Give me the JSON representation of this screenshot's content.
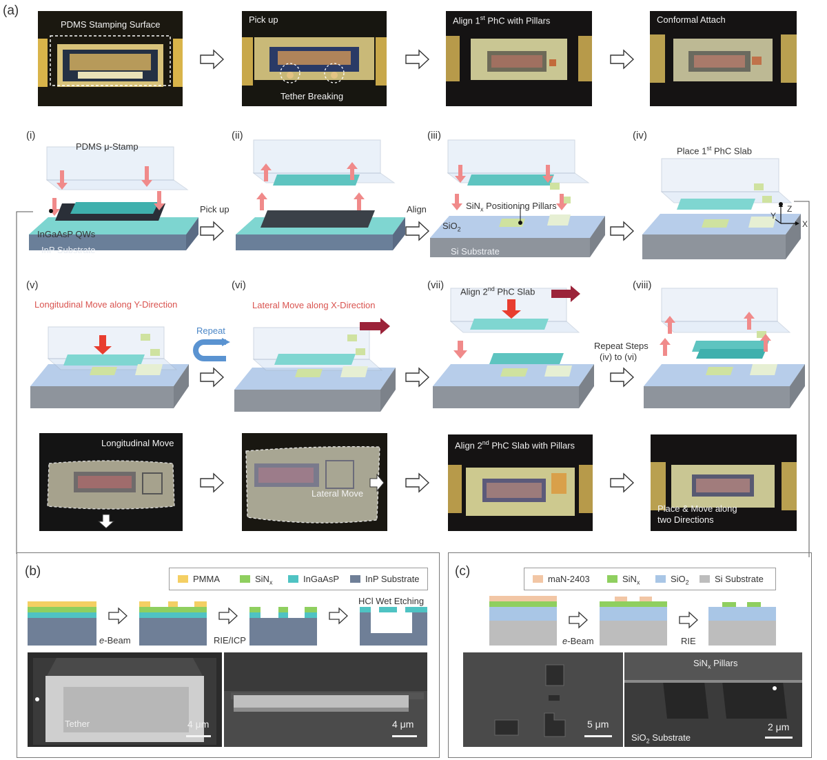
{
  "labels": {
    "a": "(a)",
    "b": "(b)",
    "c": "(c)"
  },
  "steps": [
    "(i)",
    "(ii)",
    "(iii)",
    "(iv)",
    "(v)",
    "(vi)",
    "(vii)",
    "(viii)"
  ],
  "top_photos": {
    "p1": "PDMS Stamping Surface",
    "p2_top": "Pick up",
    "p2_bottom": "Tether Breaking",
    "p3": "Align 1st PhC with Pillars",
    "p4": "Conformal Attach"
  },
  "row1": {
    "stamp": "PDMS μ-Stamp",
    "qw": "InGaAsP QWs",
    "inp": "InP Substrate",
    "pickup": "Pick up",
    "align": "Align",
    "pillars": "SiNx Positioning Pillars",
    "sio2": "SiO2",
    "si": "Si Substrate",
    "place": "Place 1st PhC Slab",
    "ax_z": "Z",
    "ax_y": "Y",
    "ax_x": "X"
  },
  "row2": {
    "long_move": "Longitudinal Move along Y-Direction",
    "repeat": "Repeat",
    "lat_move": "Lateral Move along X-Direction",
    "align2": "Align 2nd PhC Slab",
    "repeat_steps_1": "Repeat Steps",
    "repeat_steps_2": "(iv) to (vi)"
  },
  "bottom_photos": {
    "b1": "Longitudinal Move",
    "b2": "Lateral Move",
    "b3": "Align 2nd PhC Slab with Pillars",
    "b4_1": "Place & Move along",
    "b4_2": "two Directions"
  },
  "panel_b": {
    "legend": [
      "PMMA",
      "SiNx",
      "InGaAsP",
      "InP Substrate"
    ],
    "legend_colors": [
      "#f4cf63",
      "#8fcf5f",
      "#4fc3c3",
      "#6f7f97"
    ],
    "step_ebeam": "e-Beam",
    "step_rie": "RIE/ICP",
    "step_hcl": "HCl Wet Etching",
    "tether": "Tether",
    "scale1": "4 μm",
    "scale2": "4 μm"
  },
  "panel_c": {
    "legend": [
      "maN-2403",
      "SiNx",
      "SiO2",
      "Si Substrate"
    ],
    "legend_colors": [
      "#f2c6a5",
      "#8fcf5f",
      "#a9c6e6",
      "#bdbdbd"
    ],
    "step_ebeam": "e-Beam",
    "step_rie": "RIE",
    "pillars": "SiNx Pillars",
    "substrate": "SiO2 Substrate",
    "scale1": "5 μm",
    "scale2": "2 μm"
  }
}
